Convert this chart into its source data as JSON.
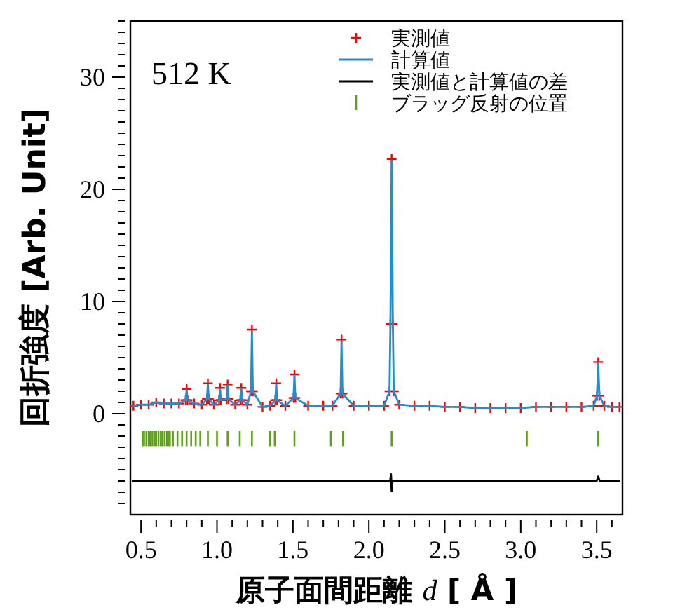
{
  "chart_data": {
    "type": "scatter",
    "xlabel": "原子面間距離 *d* [ Å ]",
    "ylabel": "回折強度 [Arb. Unit]",
    "annotations": [
      "512 K"
    ],
    "xlim": [
      0.43,
      3.67
    ],
    "ylim": [
      -9,
      35
    ],
    "xticks": [
      0.5,
      {
        "value": 0.6,
        "label": null
      },
      {
        "value": 0.7,
        "label": null
      },
      {
        "value": 0.8,
        "label": null
      },
      {
        "value": 0.9,
        "label": null
      },
      {
        "value": 1.0,
        "label": "1.0"
      },
      {
        "value": 1.1,
        "label": null
      },
      {
        "value": 1.2,
        "label": null
      },
      {
        "value": 1.3,
        "label": null
      },
      {
        "value": 1.4,
        "label": null
      },
      1.5,
      {
        "value": 1.6,
        "label": null
      },
      {
        "value": 1.7,
        "label": null
      },
      {
        "value": 1.8,
        "label": null
      },
      {
        "value": 1.9,
        "label": null
      },
      {
        "value": 2.0,
        "label": "2.0"
      },
      {
        "value": 2.1,
        "label": null
      },
      {
        "value": 2.2,
        "label": null
      },
      {
        "value": 2.3,
        "label": null
      },
      {
        "value": 2.4,
        "label": null
      },
      2.5,
      {
        "value": 2.6,
        "label": null
      },
      {
        "value": 2.7,
        "label": null
      },
      {
        "value": 2.8,
        "label": null
      },
      {
        "value": 2.9,
        "label": null
      },
      {
        "value": 3.0,
        "label": "3.0"
      },
      {
        "value": 3.1,
        "label": null
      },
      {
        "value": 3.2,
        "label": null
      },
      {
        "value": 3.3,
        "label": null
      },
      {
        "value": 3.4,
        "label": null
      },
      3.5,
      {
        "value": 3.6,
        "label": null
      }
    ],
    "yticks": [
      {
        "value": -8,
        "label": null
      },
      {
        "value": -7,
        "label": null
      },
      {
        "value": -6,
        "label": null
      },
      {
        "value": -5,
        "label": null
      },
      {
        "value": -4,
        "label": null
      },
      {
        "value": -3,
        "label": null
      },
      {
        "value": -2,
        "label": null
      },
      {
        "value": -1,
        "label": null
      },
      0,
      {
        "value": 1,
        "label": null
      },
      {
        "value": 2,
        "label": null
      },
      {
        "value": 3,
        "label": null
      },
      {
        "value": 4,
        "label": null
      },
      {
        "value": 5,
        "label": null
      },
      {
        "value": 6,
        "label": null
      },
      {
        "value": 7,
        "label": null
      },
      {
        "value": 8,
        "label": null
      },
      {
        "value": 9,
        "label": null
      },
      10,
      {
        "value": 11,
        "label": null
      },
      {
        "value": 12,
        "label": null
      },
      {
        "value": 13,
        "label": null
      },
      {
        "value": 14,
        "label": null
      },
      {
        "value": 15,
        "label": null
      },
      {
        "value": 16,
        "label": null
      },
      {
        "value": 17,
        "label": null
      },
      {
        "value": 18,
        "label": null
      },
      {
        "value": 19,
        "label": null
      },
      20,
      {
        "value": 21,
        "label": null
      },
      {
        "value": 22,
        "label": null
      },
      {
        "value": 23,
        "label": null
      },
      {
        "value": 24,
        "label": null
      },
      {
        "value": 25,
        "label": null
      },
      {
        "value": 26,
        "label": null
      },
      {
        "value": 27,
        "label": null
      },
      {
        "value": 28,
        "label": null
      },
      {
        "value": 29,
        "label": null
      },
      30,
      {
        "value": 31,
        "label": null
      },
      {
        "value": 32,
        "label": null
      },
      {
        "value": 33,
        "label": null
      },
      {
        "value": 34,
        "label": null
      },
      {
        "value": 35,
        "label": null
      }
    ],
    "legend": "top right",
    "series": [
      {
        "name": "実測値",
        "marker": "cross",
        "color": "#ff0000",
        "x": [
          0.45,
          0.5,
          0.55,
          0.6,
          0.65,
          0.7,
          0.75,
          0.794,
          0.8,
          0.806,
          0.85,
          0.9,
          0.934,
          0.94,
          0.946,
          0.98,
          1.014,
          1.02,
          1.026,
          1.064,
          1.07,
          1.076,
          1.12,
          1.154,
          1.16,
          1.166,
          1.2,
          1.224,
          1.23,
          1.236,
          1.3,
          1.35,
          1.384,
          1.39,
          1.396,
          1.45,
          1.504,
          1.51,
          1.516,
          1.6,
          1.7,
          1.76,
          1.814,
          1.82,
          1.826,
          1.9,
          2.0,
          2.1,
          2.136,
          2.142,
          2.15,
          2.158,
          2.164,
          2.2,
          2.3,
          2.4,
          2.5,
          2.6,
          2.7,
          2.8,
          2.9,
          3.0,
          3.1,
          3.2,
          3.3,
          3.4,
          3.48,
          3.502,
          3.51,
          3.518,
          3.55,
          3.6,
          3.65
        ],
        "values": [
          0.7,
          0.8,
          0.8,
          1.0,
          0.9,
          0.9,
          0.9,
          1.2,
          2.2,
          1.2,
          0.9,
          0.8,
          1.3,
          2.7,
          1.3,
          0.8,
          1.2,
          2.3,
          1.2,
          1.3,
          2.6,
          1.3,
          0.8,
          1.2,
          2.3,
          1.2,
          0.8,
          2.0,
          7.5,
          2.0,
          0.6,
          0.7,
          1.2,
          2.7,
          1.2,
          0.7,
          1.4,
          3.5,
          1.4,
          0.7,
          0.7,
          0.7,
          1.8,
          6.6,
          1.8,
          0.7,
          0.7,
          0.7,
          2.0,
          8.0,
          22.7,
          8.0,
          2.0,
          0.8,
          0.7,
          0.7,
          0.6,
          0.6,
          0.5,
          0.5,
          0.5,
          0.5,
          0.6,
          0.6,
          0.6,
          0.6,
          0.7,
          1.6,
          4.6,
          1.6,
          0.7,
          0.6,
          0.6
        ]
      },
      {
        "name": "計算値",
        "type": "line",
        "color": "#1f8fd0",
        "x": [
          0.45,
          0.5,
          0.55,
          0.6,
          0.65,
          0.7,
          0.75,
          0.794,
          0.8,
          0.806,
          0.85,
          0.9,
          0.934,
          0.94,
          0.946,
          0.98,
          1.014,
          1.02,
          1.026,
          1.064,
          1.07,
          1.076,
          1.12,
          1.154,
          1.16,
          1.166,
          1.2,
          1.224,
          1.23,
          1.236,
          1.3,
          1.35,
          1.384,
          1.39,
          1.396,
          1.45,
          1.504,
          1.51,
          1.516,
          1.6,
          1.7,
          1.76,
          1.814,
          1.82,
          1.826,
          1.9,
          2.0,
          2.1,
          2.136,
          2.142,
          2.15,
          2.158,
          2.164,
          2.2,
          2.3,
          2.4,
          2.5,
          2.6,
          2.7,
          2.8,
          2.9,
          3.0,
          3.1,
          3.2,
          3.3,
          3.4,
          3.48,
          3.502,
          3.51,
          3.518,
          3.55,
          3.6,
          3.65
        ],
        "values": [
          0.7,
          0.8,
          0.8,
          1.0,
          0.9,
          0.9,
          0.9,
          1.2,
          2.1,
          1.2,
          0.9,
          0.8,
          1.3,
          2.6,
          1.3,
          0.8,
          1.2,
          2.2,
          1.2,
          1.3,
          2.5,
          1.3,
          0.8,
          1.2,
          2.2,
          1.2,
          0.8,
          2.0,
          7.3,
          2.0,
          0.6,
          0.7,
          1.2,
          2.6,
          1.2,
          0.7,
          1.4,
          3.4,
          1.4,
          0.7,
          0.7,
          0.7,
          1.8,
          6.4,
          1.8,
          0.7,
          0.7,
          0.7,
          2.0,
          8.0,
          22.5,
          8.0,
          2.0,
          0.8,
          0.7,
          0.7,
          0.6,
          0.6,
          0.5,
          0.5,
          0.5,
          0.5,
          0.6,
          0.6,
          0.6,
          0.6,
          0.7,
          1.6,
          4.5,
          1.6,
          0.7,
          0.6,
          0.6
        ]
      },
      {
        "name": "実測値と計算値の差",
        "type": "line",
        "color": "#000000",
        "x": [
          0.45,
          0.6,
          0.8,
          1.0,
          1.2,
          1.5,
          1.8,
          2.0,
          2.14,
          2.146,
          2.15,
          2.156,
          2.2,
          2.5,
          3.0,
          3.3,
          3.5,
          3.51,
          3.52,
          3.65
        ],
        "values": [
          -6.0,
          -6.0,
          -6.0,
          -6.0,
          -6.0,
          -6.0,
          -6.0,
          -6.0,
          -6.0,
          -5.4,
          -6.9,
          -6.0,
          -6.0,
          -6.0,
          -6.0,
          -6.0,
          -6.0,
          -5.6,
          -6.0,
          -6.0
        ]
      },
      {
        "name": "ブラッグ反射の位置",
        "type": "bar",
        "color": "#5ea01a",
        "base": [
          -2.9,
          -2.9,
          -2.9,
          -2.9,
          -2.9,
          -2.9,
          -2.9,
          -2.9,
          -2.9,
          -2.9,
          -2.9,
          -2.9,
          -2.9,
          -2.9,
          -2.9,
          -2.9,
          -2.9,
          -2.9,
          -2.9,
          -2.9,
          -2.9,
          -2.9,
          -2.9,
          -2.9,
          -2.9,
          -2.9,
          -2.9,
          -2.9,
          -2.9,
          -2.9,
          -2.9,
          -2.9,
          -2.9,
          -2.9,
          -2.9
        ],
        "x": [
          0.51,
          0.52,
          0.535,
          0.55,
          0.56,
          0.575,
          0.59,
          0.6,
          0.615,
          0.63,
          0.64,
          0.655,
          0.67,
          0.68,
          0.69,
          0.71,
          0.74,
          0.77,
          0.8,
          0.83,
          0.86,
          0.89,
          0.94,
          1.0,
          1.07,
          1.15,
          1.23,
          1.35,
          1.38,
          1.51,
          1.75,
          1.83,
          2.15,
          3.04,
          3.51
        ],
        "values": [
          1.4,
          1.4,
          1.4,
          1.4,
          1.4,
          1.4,
          1.4,
          1.4,
          1.4,
          1.4,
          1.4,
          1.4,
          1.4,
          1.4,
          1.4,
          1.4,
          1.4,
          1.4,
          1.4,
          1.4,
          1.4,
          1.4,
          1.4,
          1.4,
          1.4,
          1.4,
          1.4,
          1.4,
          1.4,
          1.4,
          1.4,
          1.4,
          1.4,
          1.4,
          1.4
        ]
      }
    ]
  }
}
